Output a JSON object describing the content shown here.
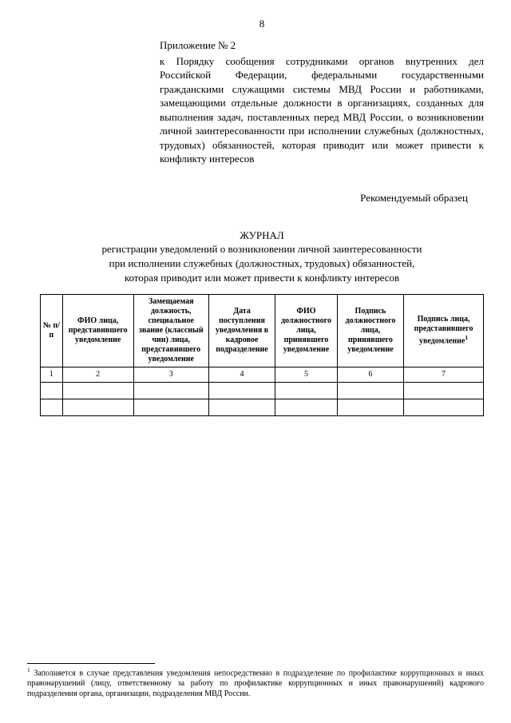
{
  "page_number": "8",
  "appendix": {
    "title": "Приложение № 2",
    "body": "к Порядку сообщения сотрудниками органов внутренних дел Российской Федерации, федеральными государственными гражданскими служащими системы МВД России и работниками, замещающими отдельные должности в организациях, созданных для выполнения задач, поставленных перед МВД России, о возникновении личной заинтересованности при исполнении служебных (должностных, трудовых) обязанностей, которая приводит или может привести к конфликту интересов"
  },
  "sample_label": "Рекомендуемый образец",
  "journal": {
    "title": "ЖУРНАЛ",
    "subtitle_line1": "регистрации уведомлений о возникновении личной заинтересованности",
    "subtitle_line2": "при исполнении служебных (должностных, трудовых) обязанностей,",
    "subtitle_line3": "которая приводит или может привести к конфликту интересов"
  },
  "table": {
    "widths_pct": [
      5,
      16,
      17,
      15,
      14,
      15,
      18
    ],
    "headers": [
      "№ п/п",
      "ФИО лица, представившего уведомление",
      "Замещаемая должность, специальное звание (классный чин) лица, представившего уведомление",
      "Дата поступления уведомления в кадровое подразделение",
      "ФИО должностного лица, принявшего уведомление",
      "Подпись должностного лица, принявшего уведомление",
      "Подпись лица, представившего уведомление"
    ],
    "header_footnote_col6": "1",
    "number_row": [
      "1",
      "2",
      "3",
      "4",
      "5",
      "6",
      "7"
    ],
    "empty_rows": 2
  },
  "footnote": {
    "marker": "1",
    "text": "Заполняется в случае представления уведомления непосредственно в подразделение по профилактике коррупционных и иных правонарушений (лицу, ответственному за работу по профилактике коррупционных и иных правонарушений) кадрового подразделения органа, организации, подразделения МВД России."
  }
}
